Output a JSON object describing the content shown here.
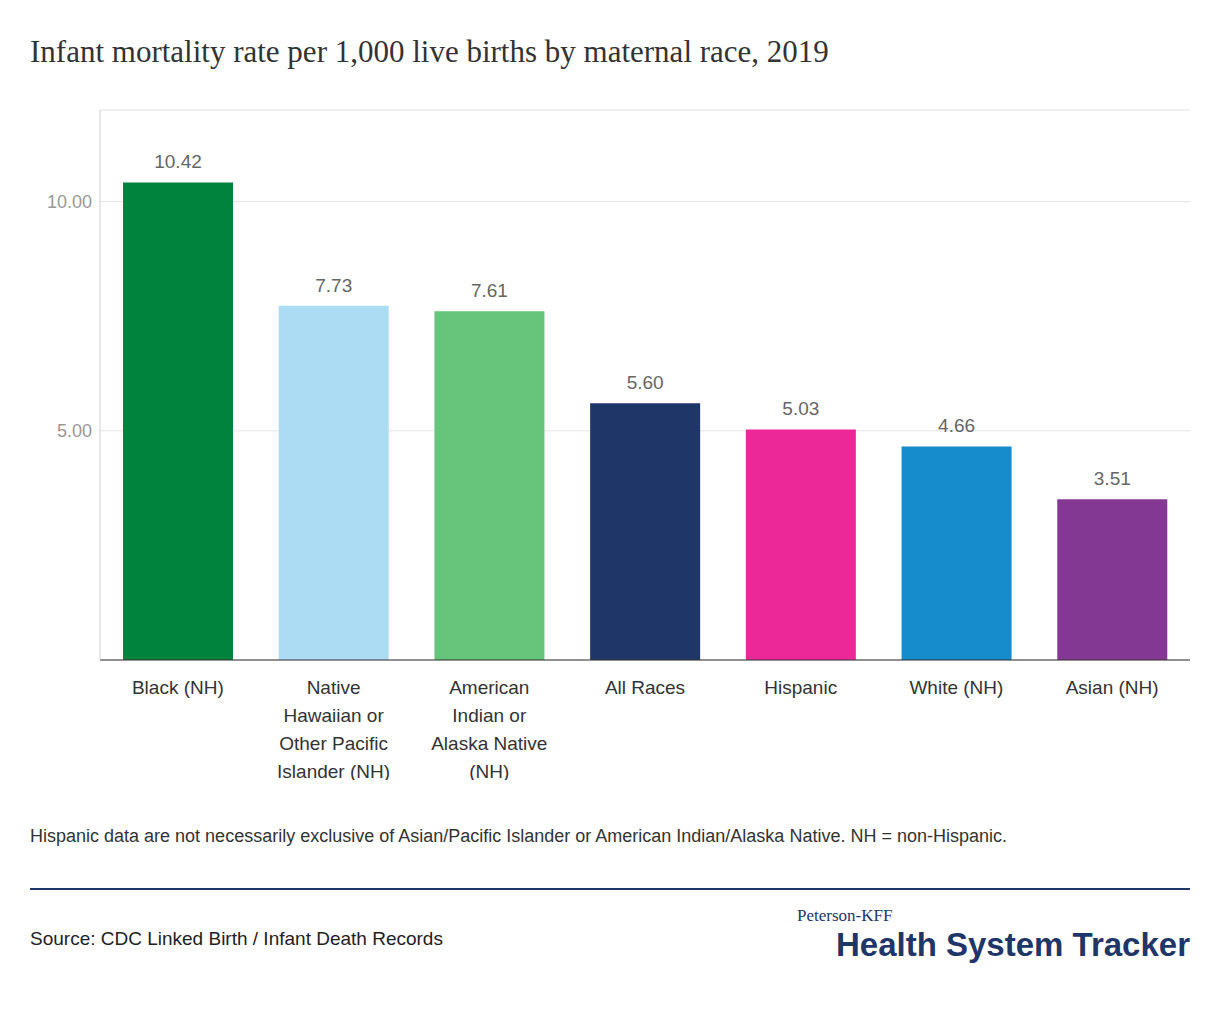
{
  "chart_data": {
    "type": "bar",
    "title": "Infant mortality rate per 1,000 live births by maternal race, 2019",
    "categories": [
      "Black (NH)",
      "Native Hawaiian or Other Pacific Islander (NH)",
      "American Indian or Alaska Native (NH)",
      "All Races",
      "Hispanic",
      "White (NH)",
      "Asian (NH)"
    ],
    "values": [
      10.42,
      7.73,
      7.61,
      5.6,
      5.03,
      4.66,
      3.51
    ],
    "value_labels": [
      "10.42",
      "7.73",
      "7.61",
      "5.60",
      "5.03",
      "4.66",
      "3.51"
    ],
    "colors": [
      "#00843d",
      "#acdcf4",
      "#66c57a",
      "#1f3668",
      "#ec2899",
      "#168ccd",
      "#833894"
    ],
    "ylim": [
      0,
      12
    ],
    "yticks": [
      {
        "value": 5,
        "label": "5.00"
      },
      {
        "value": 10,
        "label": "10.00"
      }
    ],
    "grid": true,
    "data_labels": true,
    "footnote": "Hispanic data are not necessarily exclusive of Asian/Pacific Islander or American Indian/Alaska Native. NH = non-Hispanic.",
    "source": "Source: CDC Linked Birth / Infant Death Records",
    "logo": [
      "Peterson-KFF",
      "Health System Tracker"
    ]
  }
}
